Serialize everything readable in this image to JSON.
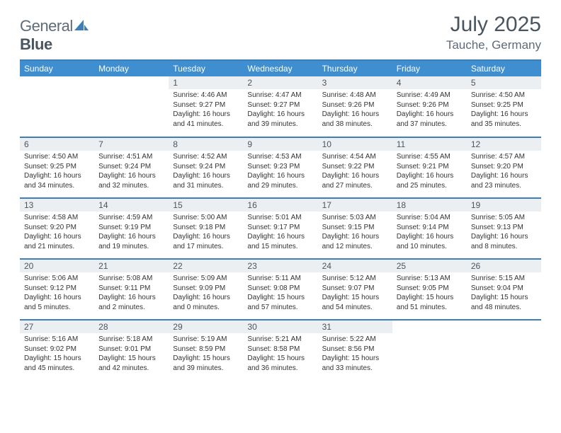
{
  "brand": {
    "part1": "General",
    "part2": "Blue"
  },
  "title": "July 2025",
  "location": "Tauche, Germany",
  "colors": {
    "header_bg": "#3e8ed0",
    "divider": "#3e7fb8",
    "daynum_bg": "#eceff1",
    "text_dark": "#4a5560",
    "text_body": "#333333",
    "logo_accent": "#3e7fb8"
  },
  "day_labels": [
    "Sunday",
    "Monday",
    "Tuesday",
    "Wednesday",
    "Thursday",
    "Friday",
    "Saturday"
  ],
  "weeks": [
    [
      null,
      null,
      {
        "n": "1",
        "sunrise": "4:46 AM",
        "sunset": "9:27 PM",
        "daylight": "16 hours and 41 minutes."
      },
      {
        "n": "2",
        "sunrise": "4:47 AM",
        "sunset": "9:27 PM",
        "daylight": "16 hours and 39 minutes."
      },
      {
        "n": "3",
        "sunrise": "4:48 AM",
        "sunset": "9:26 PM",
        "daylight": "16 hours and 38 minutes."
      },
      {
        "n": "4",
        "sunrise": "4:49 AM",
        "sunset": "9:26 PM",
        "daylight": "16 hours and 37 minutes."
      },
      {
        "n": "5",
        "sunrise": "4:50 AM",
        "sunset": "9:25 PM",
        "daylight": "16 hours and 35 minutes."
      }
    ],
    [
      {
        "n": "6",
        "sunrise": "4:50 AM",
        "sunset": "9:25 PM",
        "daylight": "16 hours and 34 minutes."
      },
      {
        "n": "7",
        "sunrise": "4:51 AM",
        "sunset": "9:24 PM",
        "daylight": "16 hours and 32 minutes."
      },
      {
        "n": "8",
        "sunrise": "4:52 AM",
        "sunset": "9:24 PM",
        "daylight": "16 hours and 31 minutes."
      },
      {
        "n": "9",
        "sunrise": "4:53 AM",
        "sunset": "9:23 PM",
        "daylight": "16 hours and 29 minutes."
      },
      {
        "n": "10",
        "sunrise": "4:54 AM",
        "sunset": "9:22 PM",
        "daylight": "16 hours and 27 minutes."
      },
      {
        "n": "11",
        "sunrise": "4:55 AM",
        "sunset": "9:21 PM",
        "daylight": "16 hours and 25 minutes."
      },
      {
        "n": "12",
        "sunrise": "4:57 AM",
        "sunset": "9:20 PM",
        "daylight": "16 hours and 23 minutes."
      }
    ],
    [
      {
        "n": "13",
        "sunrise": "4:58 AM",
        "sunset": "9:20 PM",
        "daylight": "16 hours and 21 minutes."
      },
      {
        "n": "14",
        "sunrise": "4:59 AM",
        "sunset": "9:19 PM",
        "daylight": "16 hours and 19 minutes."
      },
      {
        "n": "15",
        "sunrise": "5:00 AM",
        "sunset": "9:18 PM",
        "daylight": "16 hours and 17 minutes."
      },
      {
        "n": "16",
        "sunrise": "5:01 AM",
        "sunset": "9:17 PM",
        "daylight": "16 hours and 15 minutes."
      },
      {
        "n": "17",
        "sunrise": "5:03 AM",
        "sunset": "9:15 PM",
        "daylight": "16 hours and 12 minutes."
      },
      {
        "n": "18",
        "sunrise": "5:04 AM",
        "sunset": "9:14 PM",
        "daylight": "16 hours and 10 minutes."
      },
      {
        "n": "19",
        "sunrise": "5:05 AM",
        "sunset": "9:13 PM",
        "daylight": "16 hours and 8 minutes."
      }
    ],
    [
      {
        "n": "20",
        "sunrise": "5:06 AM",
        "sunset": "9:12 PM",
        "daylight": "16 hours and 5 minutes."
      },
      {
        "n": "21",
        "sunrise": "5:08 AM",
        "sunset": "9:11 PM",
        "daylight": "16 hours and 2 minutes."
      },
      {
        "n": "22",
        "sunrise": "5:09 AM",
        "sunset": "9:09 PM",
        "daylight": "16 hours and 0 minutes."
      },
      {
        "n": "23",
        "sunrise": "5:11 AM",
        "sunset": "9:08 PM",
        "daylight": "15 hours and 57 minutes."
      },
      {
        "n": "24",
        "sunrise": "5:12 AM",
        "sunset": "9:07 PM",
        "daylight": "15 hours and 54 minutes."
      },
      {
        "n": "25",
        "sunrise": "5:13 AM",
        "sunset": "9:05 PM",
        "daylight": "15 hours and 51 minutes."
      },
      {
        "n": "26",
        "sunrise": "5:15 AM",
        "sunset": "9:04 PM",
        "daylight": "15 hours and 48 minutes."
      }
    ],
    [
      {
        "n": "27",
        "sunrise": "5:16 AM",
        "sunset": "9:02 PM",
        "daylight": "15 hours and 45 minutes."
      },
      {
        "n": "28",
        "sunrise": "5:18 AM",
        "sunset": "9:01 PM",
        "daylight": "15 hours and 42 minutes."
      },
      {
        "n": "29",
        "sunrise": "5:19 AM",
        "sunset": "8:59 PM",
        "daylight": "15 hours and 39 minutes."
      },
      {
        "n": "30",
        "sunrise": "5:21 AM",
        "sunset": "8:58 PM",
        "daylight": "15 hours and 36 minutes."
      },
      {
        "n": "31",
        "sunrise": "5:22 AM",
        "sunset": "8:56 PM",
        "daylight": "15 hours and 33 minutes."
      },
      null,
      null
    ]
  ],
  "labels": {
    "sunrise": "Sunrise: ",
    "sunset": "Sunset: ",
    "daylight": "Daylight: "
  }
}
